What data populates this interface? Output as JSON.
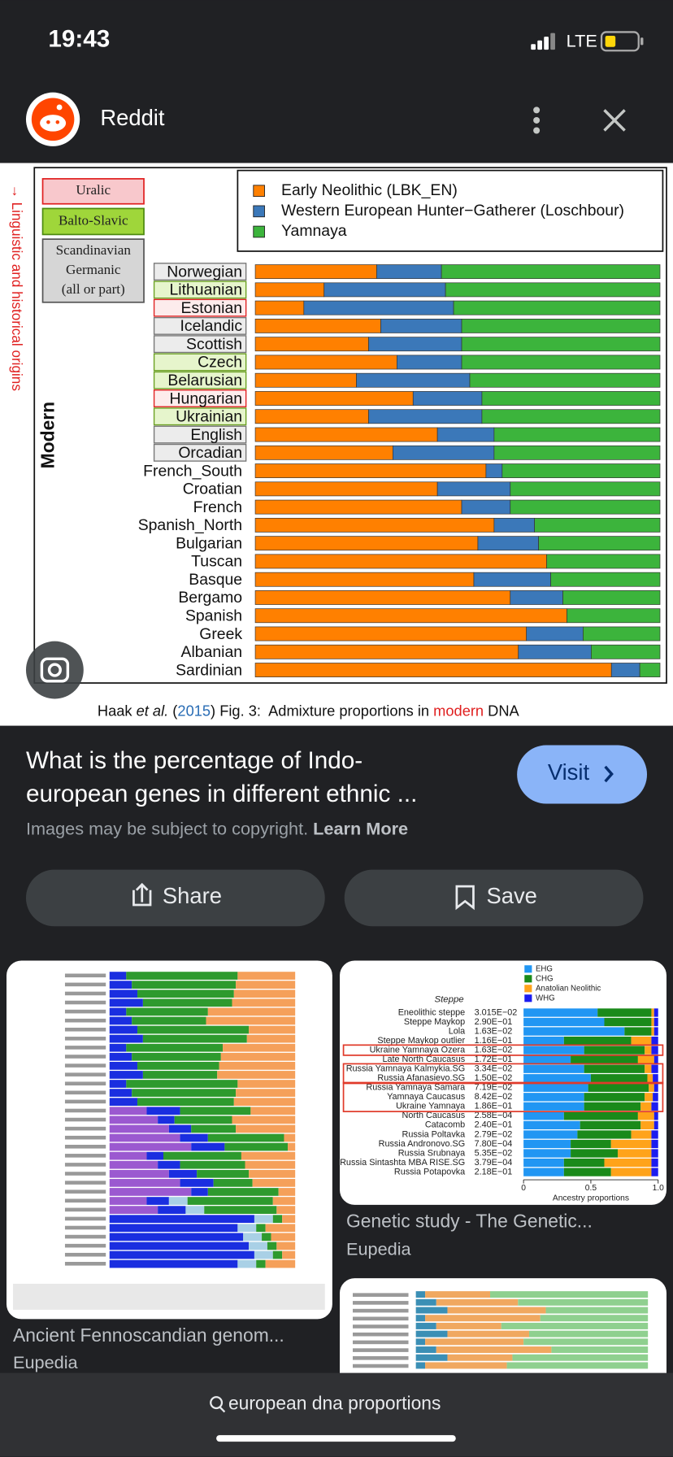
{
  "status_bar": {
    "time": "19:43",
    "network": "LTE"
  },
  "header": {
    "source": "Reddit"
  },
  "chart_data": {
    "type": "stacked_barh",
    "side_note": "→ Linguistic and historical origins",
    "y_title": "Modern",
    "groups": [
      [
        "Uralic"
      ],
      [
        "Balto-Slavic"
      ],
      [
        "Scandinavian",
        "Germanic",
        "(all or part)"
      ]
    ],
    "categories": [
      "Norwegian",
      "Lithuanian",
      "Estonian",
      "Icelandic",
      "Scottish",
      "Czech",
      "Belarusian",
      "Hungarian",
      "Ukrainian",
      "English",
      "Orcadian",
      "French_South",
      "Croatian",
      "French",
      "Spanish_North",
      "Bulgarian",
      "Tuscan",
      "Basque",
      "Bergamo",
      "Spanish",
      "Greek",
      "Albanian",
      "Sardinian"
    ],
    "category_group": [
      2,
      1,
      0,
      2,
      2,
      1,
      1,
      0,
      1,
      2,
      2,
      null,
      null,
      null,
      null,
      null,
      null,
      null,
      null,
      null,
      null,
      null,
      null
    ],
    "series": [
      {
        "name": "Early Neolithic (LBK_EN)",
        "color": "#ff8000",
        "values": [
          30,
          17,
          12,
          31,
          28,
          35,
          25,
          39,
          28,
          45,
          34,
          57,
          45,
          51,
          59,
          55,
          72,
          54,
          63,
          77,
          67,
          65,
          88
        ]
      },
      {
        "name": "Western European Hunter−Gatherer (Loschbour)",
        "color": "#3b78b9",
        "values": [
          16,
          30,
          37,
          20,
          23,
          16,
          28,
          17,
          28,
          14,
          25,
          4,
          18,
          12,
          10,
          15,
          0,
          19,
          13,
          0,
          14,
          18,
          7
        ]
      },
      {
        "name": "Yamnaya",
        "color": "#3cb43c",
        "values": [
          54,
          53,
          51,
          49,
          49,
          49,
          47,
          44,
          44,
          41,
          41,
          39,
          37,
          37,
          31,
          30,
          28,
          27,
          24,
          23,
          19,
          17,
          5
        ]
      }
    ],
    "xlim": [
      0,
      100
    ],
    "caption": [
      "Haak ",
      "et al.",
      " (",
      "2015",
      ") Fig. 3:  Admixture proportions in ",
      "modern",
      " DNA"
    ]
  },
  "result": {
    "title_lines": [
      "What is the percentage of Indo-",
      "european genes in different ethnic ..."
    ],
    "button": "Visit",
    "notice": "Images may be subject to copyright. ",
    "notice_link": "Learn More"
  },
  "actions": [
    "Share",
    "Save"
  ],
  "thumb2": {
    "legend": [
      {
        "name": "EHG",
        "color": "#2196f3"
      },
      {
        "name": "CHG",
        "color": "#1a8a1a"
      },
      {
        "name": "Anatolian Neolithic",
        "color": "#ffa31a"
      },
      {
        "name": "WHG",
        "color": "#1c1cf0"
      }
    ],
    "group": "Steppe",
    "rows": [
      {
        "name": "Eneolithic steppe",
        "value": "3.015E−02",
        "shares": [
          0.55,
          0.4,
          0.02,
          0.03
        ]
      },
      {
        "name": "Steppe Maykop",
        "value": "2.90E−01",
        "shares": [
          0.6,
          0.35,
          0.02,
          0.03
        ]
      },
      {
        "name": "Lola",
        "value": "1.63E−02",
        "shares": [
          0.75,
          0.2,
          0.02,
          0.03
        ]
      },
      {
        "name": "Steppe Maykop outlier",
        "value": "1.16E−01",
        "shares": [
          0.3,
          0.5,
          0.15,
          0.05
        ]
      },
      {
        "name": "Ukraine Yamnaya Ozera",
        "value": "1.63E−02",
        "shares": [
          0.45,
          0.45,
          0.05,
          0.05
        ]
      },
      {
        "name": "Late North Caucasus",
        "value": "1.72E−01",
        "shares": [
          0.35,
          0.5,
          0.12,
          0.03
        ]
      },
      {
        "name": "Russia Yamnaya Kalmykia.SG",
        "value": "3.34E−02",
        "shares": [
          0.45,
          0.45,
          0.05,
          0.05
        ]
      },
      {
        "name": "Russia Afanasievo.SG",
        "value": "1.50E−02",
        "shares": [
          0.5,
          0.42,
          0.04,
          0.04
        ]
      },
      {
        "name": "Russia Yamnaya Samara",
        "value": "7.19E−02",
        "shares": [
          0.48,
          0.45,
          0.04,
          0.03
        ]
      },
      {
        "name": "Yamnaya Caucasus",
        "value": "8.42E−02",
        "shares": [
          0.45,
          0.45,
          0.06,
          0.04
        ]
      },
      {
        "name": "Ukraine Yamnaya",
        "value": "1.86E−01",
        "shares": [
          0.45,
          0.42,
          0.08,
          0.05
        ]
      },
      {
        "name": "North Caucasus",
        "value": "2.58E−04",
        "shares": [
          0.3,
          0.55,
          0.12,
          0.03
        ]
      },
      {
        "name": "Catacomb",
        "value": "2.40E−01",
        "shares": [
          0.42,
          0.45,
          0.1,
          0.03
        ]
      },
      {
        "name": "Russia Poltavka",
        "value": "2.79E−02",
        "shares": [
          0.4,
          0.4,
          0.15,
          0.05
        ]
      },
      {
        "name": "Russia Andronovo.SG",
        "value": "7.80E−04",
        "shares": [
          0.35,
          0.3,
          0.3,
          0.05
        ]
      },
      {
        "name": "Russia Srubnaya",
        "value": "5.35E−02",
        "shares": [
          0.35,
          0.35,
          0.25,
          0.05
        ]
      },
      {
        "name": "Russia Sintashta MBA RISE.SG",
        "value": "3.79E−04",
        "shares": [
          0.3,
          0.3,
          0.35,
          0.05
        ]
      },
      {
        "name": "Russia Potapovka",
        "value": "2.18E−01",
        "shares": [
          0.3,
          0.35,
          0.3,
          0.05
        ]
      }
    ],
    "xlim": [
      0,
      1
    ],
    "xticks": [
      0,
      0.5,
      {
        "value": 1,
        "label": "1.0"
      }
    ],
    "xlabel": "Ancestry proportions"
  },
  "related": [
    {
      "title": "Ancient Fennoscandian genom...",
      "source": "Eupedia"
    },
    {
      "title": "Genetic study - The Genetic...",
      "source": "Eupedia"
    }
  ],
  "search": {
    "query": "european dna proportions"
  }
}
